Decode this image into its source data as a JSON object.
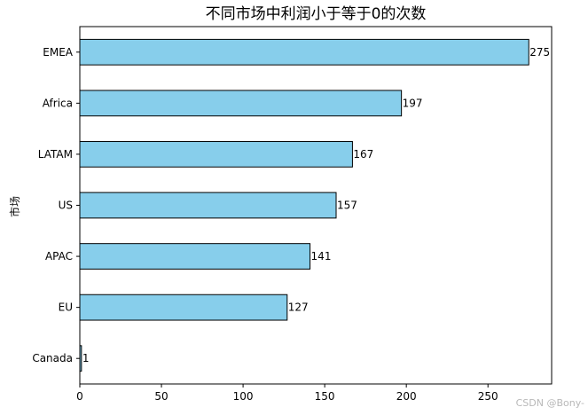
{
  "chart_data": {
    "type": "bar",
    "orientation": "horizontal",
    "title": "不同市场中利润小于等于0的次数",
    "xlabel": "",
    "ylabel": "市场",
    "categories": [
      "EMEA",
      "Africa",
      "LATAM",
      "US",
      "APAC",
      "EU",
      "Canada"
    ],
    "values": [
      275,
      197,
      167,
      157,
      141,
      127,
      1
    ],
    "xlim": [
      0,
      289
    ],
    "xticks": [
      0,
      50,
      100,
      150,
      200,
      250
    ],
    "grid": false,
    "bar_color": "#87CEEB",
    "edge_color": "#000000"
  },
  "watermark": "CSDN @Bony-"
}
